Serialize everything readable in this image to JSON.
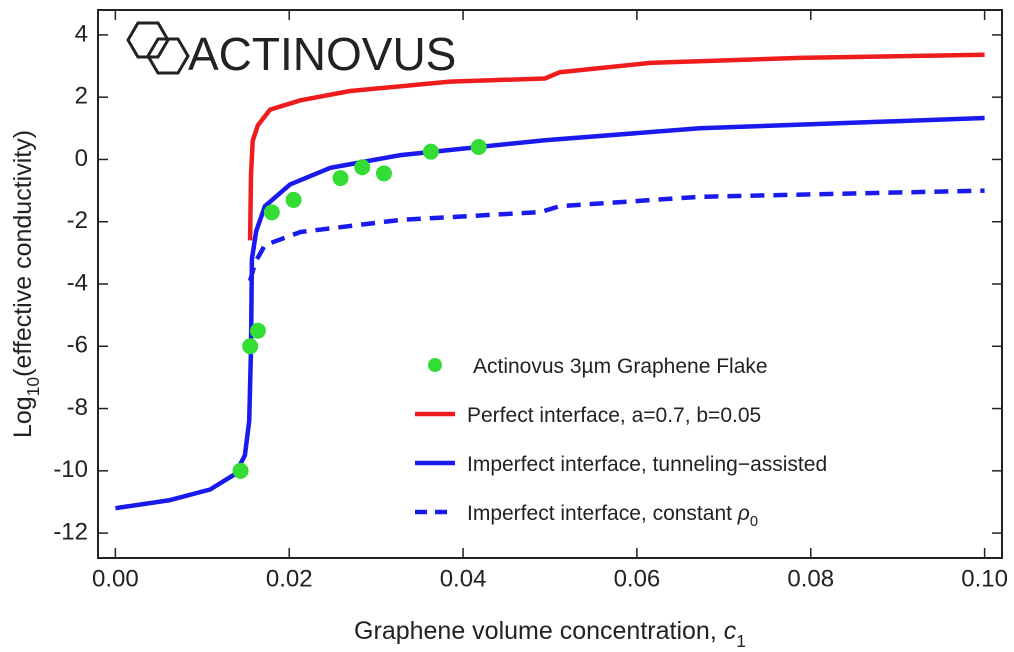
{
  "chart_data": {
    "type": "line",
    "logo": "ACTINOVUS",
    "xlabel": [
      {
        "t": "Graphene volume concentration, "
      },
      {
        "t": "c",
        "style": "italic"
      },
      {
        "t": "1",
        "style": "sub"
      }
    ],
    "ylabel": [
      {
        "t": "Log"
      },
      {
        "t": "10",
        "style": "sub"
      },
      {
        "t": "(effective conductivity)"
      }
    ],
    "xlim": [
      -0.002,
      0.102
    ],
    "ylim": [
      -12.8,
      4.8
    ],
    "xticks": [
      {
        "value": 0,
        "label": "0.00"
      },
      {
        "value": 0.02,
        "label": "0.02"
      },
      {
        "value": 0.04,
        "label": "0.04"
      },
      {
        "value": 0.06,
        "label": "0.06"
      },
      {
        "value": 0.08,
        "label": "0.08"
      },
      {
        "value": 0.1,
        "label": "0.10"
      }
    ],
    "yticks": [
      4,
      2,
      0,
      -2,
      -4,
      -6,
      -8,
      -10,
      -12
    ],
    "legend": "lower right",
    "series": [
      {
        "name": [
          {
            "t": "Actinovus  3µm Graphene Flake"
          }
        ],
        "type": "scatter",
        "color": "#33dd33",
        "x": [
          0.0144,
          0.0155,
          0.0164,
          0.018,
          0.0205,
          0.0259,
          0.0284,
          0.0309,
          0.0363,
          0.0418
        ],
        "values": [
          -10.0,
          -6.0,
          -5.5,
          -1.7,
          -1.3,
          -0.6,
          -0.25,
          -0.45,
          0.25,
          0.4
        ]
      },
      {
        "name": [
          {
            "t": "Perfect interface, a=0.7, b=0.05"
          }
        ],
        "type": "line",
        "color": "#ee1c1c",
        "dashed": false,
        "x": [
          0.0155,
          0.0156,
          0.0158,
          0.0164,
          0.0178,
          0.0213,
          0.027,
          0.0385,
          0.0494,
          0.0511,
          0.0615,
          0.0787,
          0.1
        ],
        "values": [
          -2.6,
          -0.5,
          0.6,
          1.1,
          1.6,
          1.9,
          2.2,
          2.5,
          2.6,
          2.8,
          3.1,
          3.26,
          3.36
        ]
      },
      {
        "name": [
          {
            "t": "Imperfect interface, tunneling−assisted"
          }
        ],
        "type": "line",
        "color": "#1a1aee",
        "dashed": false,
        "x": [
          0,
          0.0063,
          0.0109,
          0.0138,
          0.0149,
          0.0154,
          0.0156,
          0.0157,
          0.0162,
          0.0172,
          0.0201,
          0.0247,
          0.0328,
          0.0494,
          0.0672,
          0.1
        ],
        "values": [
          -11.2,
          -10.94,
          -10.6,
          -10.1,
          -9.5,
          -8.4,
          -6.1,
          -3.2,
          -2.3,
          -1.5,
          -0.8,
          -0.27,
          0.14,
          0.62,
          1.0,
          1.33
        ]
      },
      {
        "name": [
          {
            "t": "Imperfect interface, constant "
          },
          {
            "t": "ρ",
            "style": "italic"
          },
          {
            "t": "0",
            "style": "sub"
          }
        ],
        "type": "line",
        "color": "#1a1aee",
        "dashed": true,
        "x": [
          0.0155,
          0.0161,
          0.0172,
          0.0213,
          0.0328,
          0.0489,
          0.0511,
          0.0672,
          0.1
        ],
        "values": [
          -3.9,
          -3.3,
          -2.75,
          -2.33,
          -1.94,
          -1.69,
          -1.5,
          -1.2,
          -1.0
        ]
      }
    ]
  }
}
